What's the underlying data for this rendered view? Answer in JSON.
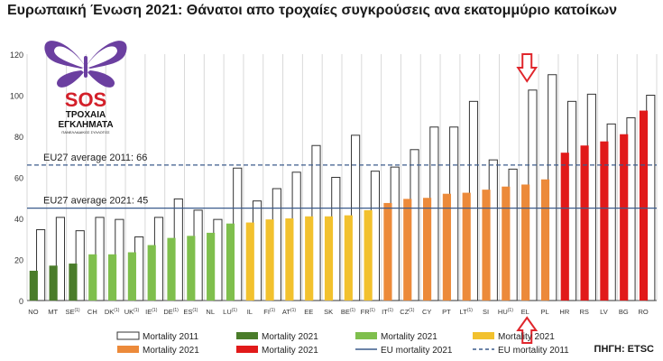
{
  "title": "Ευρωπαική Ένωση 2021: Θάνατοι απο τροχαίες συγκρούσεις ανα εκατομμύριο κατοίκων",
  "source": "ΠΗΓΗ: ETSC",
  "logo": {
    "line1": "SOS",
    "line2": "ΤΡΟΧΑΙΑ",
    "line3": "ΕΓΚΛΗΜΑΤΑ",
    "line4": "ΠΑΝΕΛΛΑΔΙΚΟΣ ΣΥΛΛΟΓΟΣ"
  },
  "colors": {
    "dark_green": "#4a7c2a",
    "light_green": "#7fbf4d",
    "yellow": "#f2c12e",
    "orange": "#ec8a3a",
    "red": "#e11a1a",
    "outline": "#333333",
    "avg_line": "#3b5b8c",
    "arrow": "#e0262c"
  },
  "chart_data": {
    "type": "bar",
    "categories": [
      "NO",
      "MT",
      "SE",
      "CH",
      "DK",
      "UK",
      "IE",
      "DE",
      "ES",
      "NL",
      "LU",
      "IL",
      "FI",
      "AT",
      "EE",
      "SK",
      "BE",
      "FR",
      "IT",
      "CZ",
      "CY",
      "PT",
      "LT",
      "SI",
      "HU",
      "EL",
      "PL",
      "HR",
      "RS",
      "LV",
      "BG",
      "RO"
    ],
    "category_notes": {
      "SE": "(1)",
      "DK": "(1)",
      "UK": "(1)",
      "IE": "(1)",
      "DE": "(1)",
      "ES": "(1)",
      "LU": "(1)",
      "FI": "(1)",
      "AT": "(1)",
      "BE": "(1)",
      "FR": "(1)",
      "IT": "(1)",
      "CZ": "(1)",
      "LT": "(1)",
      "HU": "(1)"
    },
    "series": [
      {
        "name": "Mortality 2011",
        "style": "outline",
        "values": [
          34.5,
          40.5,
          34,
          40.5,
          39.5,
          31,
          40.5,
          49.5,
          44,
          39.5,
          64.5,
          48.5,
          54.5,
          62.5,
          75.5,
          60,
          80.5,
          63,
          65,
          73.5,
          84.5,
          84.5,
          97,
          68.5,
          64,
          102.5,
          110,
          97,
          100.5,
          86,
          89,
          100
        ]
      },
      {
        "name": "Mortality 2021",
        "style": "filled",
        "values": [
          14.5,
          17,
          18,
          22.5,
          22.5,
          23.5,
          27,
          30.5,
          31.5,
          33,
          37.5,
          38,
          39.5,
          40,
          41,
          41,
          41.5,
          44,
          47.5,
          49.5,
          50,
          52,
          52.5,
          54,
          55.5,
          56.5,
          59,
          72,
          75.5,
          77.5,
          81,
          92.5
        ]
      }
    ],
    "bar_color_groups": {
      "dark_green": [
        "NO",
        "MT",
        "SE"
      ],
      "light_green": [
        "CH",
        "DK",
        "UK",
        "IE",
        "DE",
        "ES",
        "NL",
        "LU"
      ],
      "yellow": [
        "IL",
        "FI",
        "AT",
        "EE",
        "SK",
        "BE",
        "FR"
      ],
      "orange": [
        "IT",
        "CZ",
        "CY",
        "PT",
        "LT",
        "SI",
        "HU",
        "EL",
        "PL"
      ],
      "red": [
        "HR",
        "RS",
        "LV",
        "BG",
        "RO"
      ]
    },
    "reference_lines": [
      {
        "label": "EU27 average 2011: 66",
        "value": 66,
        "style": "dashed"
      },
      {
        "label": "EU27 average 2021: 45",
        "value": 45,
        "style": "solid"
      }
    ],
    "highlight": "EL",
    "ylim": [
      0,
      120
    ],
    "yticks": [
      0,
      20,
      40,
      60,
      80,
      100,
      120
    ],
    "grid": "vertical",
    "legend_items": [
      "Mortality 2011",
      "Mortality 2021",
      "Mortality 2021",
      "Mortality 2021",
      "Mortality 2021",
      "Mortality 2021",
      "EU mortality 2021",
      "EU mortality 2011"
    ],
    "legend_position": "bottom"
  }
}
